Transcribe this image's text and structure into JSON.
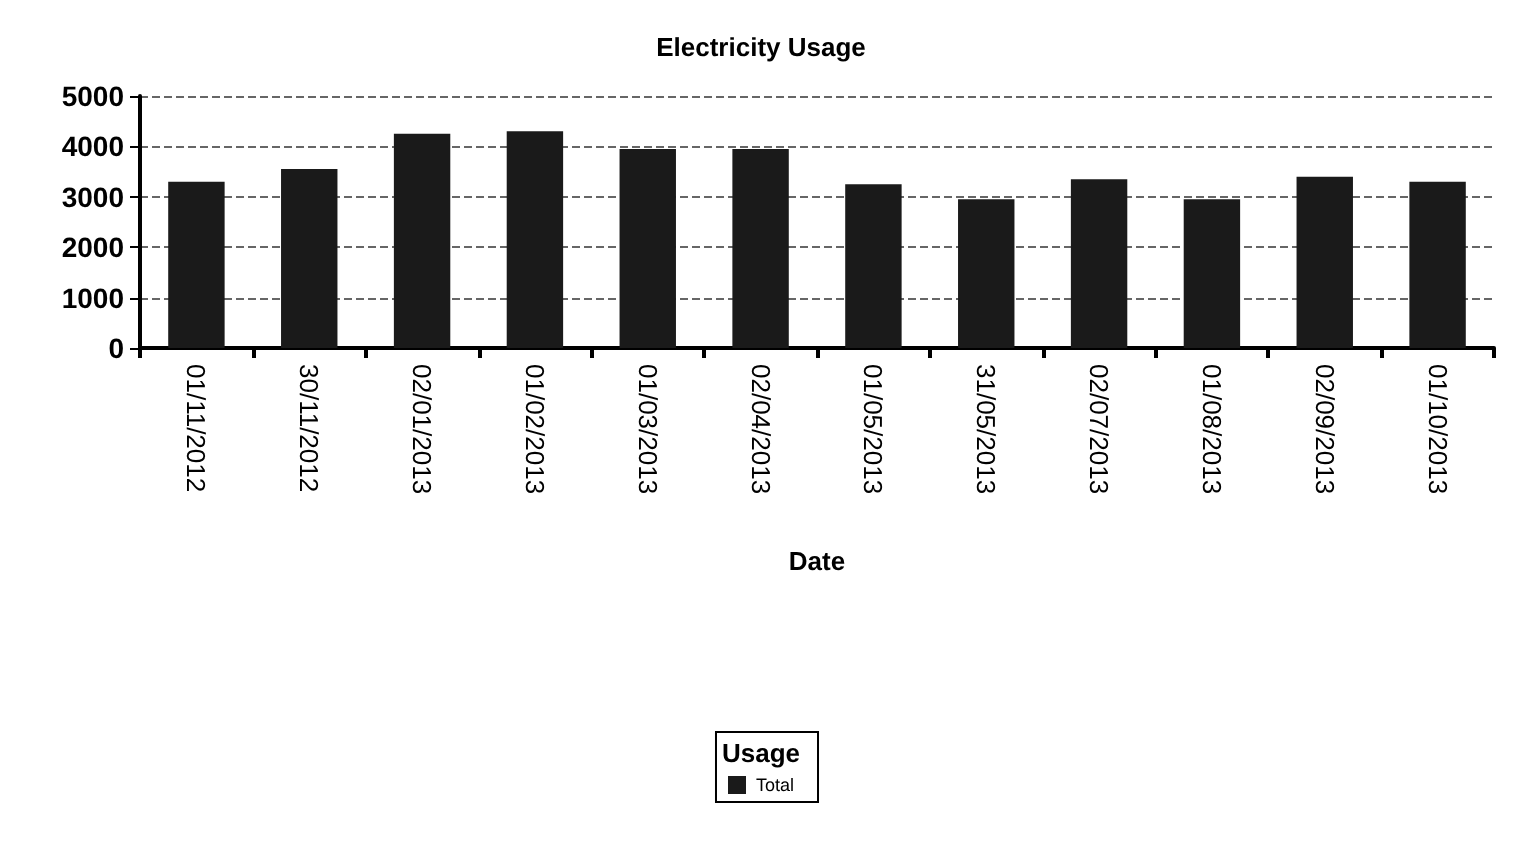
{
  "chart_data": {
    "type": "bar",
    "title": "Electricity Usage",
    "xlabel": "Date",
    "legend_title": "Usage",
    "categories": [
      "01/11/2012",
      "30/11/2012",
      "02/01/2013",
      "01/02/2013",
      "01/03/2013",
      "02/04/2013",
      "01/05/2013",
      "31/05/2013",
      "02/07/2013",
      "01/08/2013",
      "02/09/2013",
      "01/10/2013"
    ],
    "series": [
      {
        "name": "Total",
        "color": "#1a1a1a",
        "values": [
          3300,
          3550,
          4250,
          4300,
          3950,
          3950,
          3250,
          2950,
          3350,
          2950,
          3400,
          3300
        ]
      }
    ],
    "ylim": [
      0,
      5000
    ],
    "yticks": [
      0,
      1000,
      2000,
      3000,
      4000,
      5000
    ],
    "grid": "y",
    "legend": "bottom"
  }
}
